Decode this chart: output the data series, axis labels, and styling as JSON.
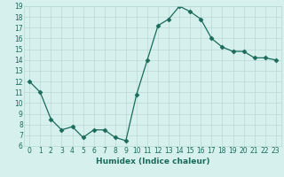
{
  "x": [
    0,
    1,
    2,
    3,
    4,
    5,
    6,
    7,
    8,
    9,
    10,
    11,
    12,
    13,
    14,
    15,
    16,
    17,
    18,
    19,
    20,
    21,
    22,
    23
  ],
  "y": [
    12,
    11,
    8.5,
    7.5,
    7.8,
    6.8,
    7.5,
    7.5,
    6.8,
    6.5,
    10.8,
    14.0,
    17.2,
    17.8,
    19.0,
    18.5,
    17.8,
    16.0,
    15.2,
    14.8,
    14.8,
    14.2,
    14.2,
    14.0
  ],
  "xlabel": "Humidex (Indice chaleur)",
  "ylim": [
    6,
    19
  ],
  "xlim": [
    -0.5,
    23.5
  ],
  "yticks": [
    6,
    7,
    8,
    9,
    10,
    11,
    12,
    13,
    14,
    15,
    16,
    17,
    18,
    19
  ],
  "xticks": [
    0,
    1,
    2,
    3,
    4,
    5,
    6,
    7,
    8,
    9,
    10,
    11,
    12,
    13,
    14,
    15,
    16,
    17,
    18,
    19,
    20,
    21,
    22,
    23
  ],
  "line_color": "#1a6b5a",
  "marker": "D",
  "marker_size": 2.5,
  "bg_color": "#d6f0ee",
  "grid_color": "#b8d8d4",
  "label_fontsize": 6.5,
  "tick_fontsize": 5.5
}
